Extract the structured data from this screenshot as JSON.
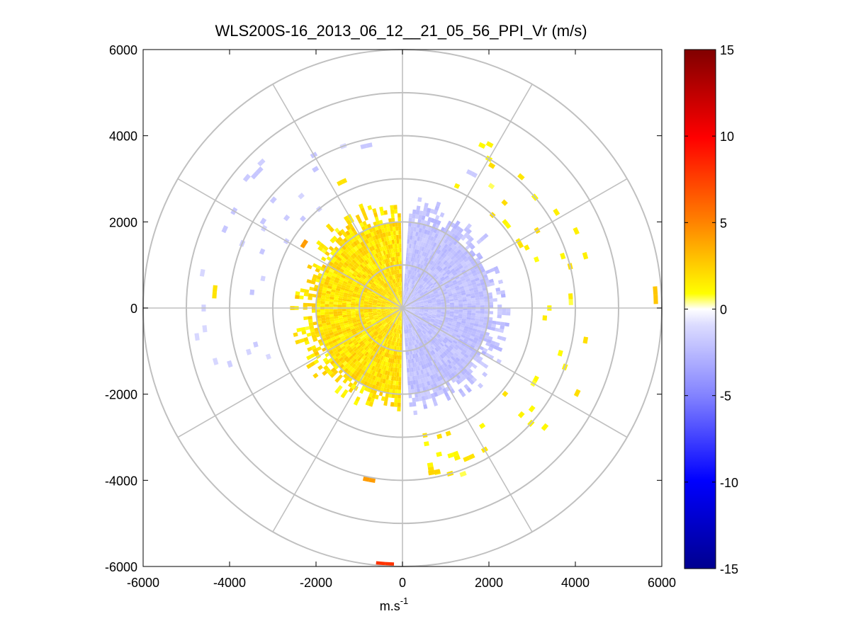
{
  "chart_data": {
    "type": "heatmap",
    "subtype": "polar-ppi",
    "title": "WLS200S-16_2013_06_12__21_05_56_PPI_Vr (m/s)",
    "xlabel": "m.s",
    "xlabel_superscript": "-1",
    "ylabel": "",
    "xlim": [
      -6000,
      6000
    ],
    "ylim": [
      -6000,
      6000
    ],
    "x_ticks": [
      "-6000",
      "-4000",
      "-2000",
      "0",
      "2000",
      "4000",
      "6000"
    ],
    "y_ticks": [
      "6000",
      "4000",
      "2000",
      "0",
      "-2000",
      "-4000",
      "-6000"
    ],
    "range_rings": [
      1000,
      2000,
      3000,
      4000,
      5000,
      6000
    ],
    "spoke_interval_deg": 30,
    "grid": true,
    "colorbar": {
      "limits": [
        -15,
        15
      ],
      "ticks": [
        "15",
        "10",
        "5",
        "0",
        "-5",
        "-10",
        "-15"
      ],
      "colormap": "blue-white-yellow-red",
      "colors": {
        "low": "#00008f",
        "mid_blue": "#0000ff",
        "pale_blue": "#dcdcff",
        "white": "#ffffff",
        "yellow": "#ffff00",
        "orange": "#ff8000",
        "red": "#ff0000",
        "high": "#800000"
      }
    },
    "regions": [
      {
        "name": "receding-west-sector",
        "az_start_deg": 182,
        "az_end_deg": 358,
        "r_min": 0,
        "r_max": 2300,
        "value": 1.5
      },
      {
        "name": "approaching-east-sector",
        "az_start_deg": 5,
        "az_end_deg": 175,
        "r_min": 0,
        "r_max": 2300,
        "value": -2.5
      },
      {
        "name": "sparse-outer-ring-east",
        "az_start_deg": 20,
        "az_end_deg": 170,
        "r_min": 3000,
        "r_max": 4200,
        "value": 1.0
      },
      {
        "name": "sparse-outer-ring-west",
        "az_start_deg": 250,
        "az_end_deg": 340,
        "r_min": 3000,
        "r_max": 4500,
        "value": -1.5
      }
    ],
    "points": [
      {
        "x": 5850,
        "y": 400,
        "value": 2.5
      },
      {
        "x": -4350,
        "y": 300,
        "value": 1.5
      },
      {
        "x": -300,
        "y": -5950,
        "value": 8.0
      },
      {
        "x": -700,
        "y": -4000,
        "value": 4.0
      },
      {
        "x": 800,
        "y": -3800,
        "value": 2.0
      },
      {
        "x": 1600,
        "y": -3450,
        "value": 1.5
      },
      {
        "x": -2300,
        "y": 1450,
        "value": 4.0
      },
      {
        "x": -1450,
        "y": 2900,
        "value": 1.5
      },
      {
        "x": 1550,
        "y": 3150,
        "value": -1.8
      },
      {
        "x": -900,
        "y": 3750,
        "value": -2.0
      }
    ]
  }
}
